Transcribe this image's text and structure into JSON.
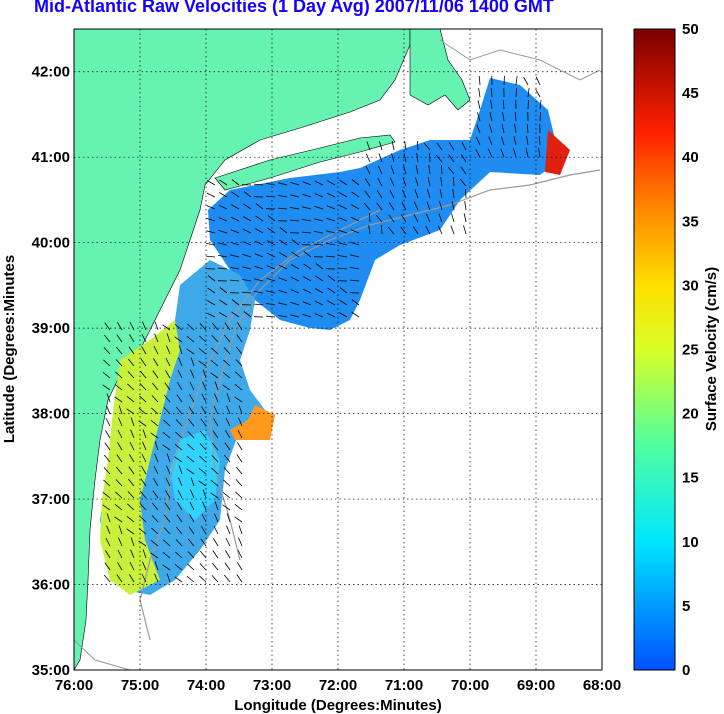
{
  "title": "Mid-Atlantic Raw Velocities (1 Day Avg) 2007/11/06 1400 GMT",
  "chart_data": {
    "type": "heatmap",
    "title": "Mid-Atlantic Raw Velocities (1 Day Avg) 2007/11/06 1400 GMT",
    "xlabel": "Longitude (Degrees:Minutes)",
    "ylabel": "Latitude (Degrees:Minutes",
    "xlim": [
      -76,
      -68
    ],
    "ylim": [
      35,
      42.5
    ],
    "x_ticks": [
      "76:00",
      "75:00",
      "74:00",
      "73:00",
      "72:00",
      "71:00",
      "70:00",
      "69:00",
      "68:00"
    ],
    "y_ticks": [
      "35:00",
      "36:00",
      "37:00",
      "38:00",
      "39:00",
      "40:00",
      "41:00",
      "42:00"
    ],
    "grid": true,
    "colorbar": {
      "label": "Surface Velocity (cm/s)",
      "range": [
        0,
        50
      ],
      "ticks": [
        "0",
        "5",
        "10",
        "15",
        "20",
        "25",
        "30",
        "35",
        "40",
        "45",
        "50"
      ],
      "colormap": "jet"
    },
    "land_color": "#66f2b0"
  }
}
